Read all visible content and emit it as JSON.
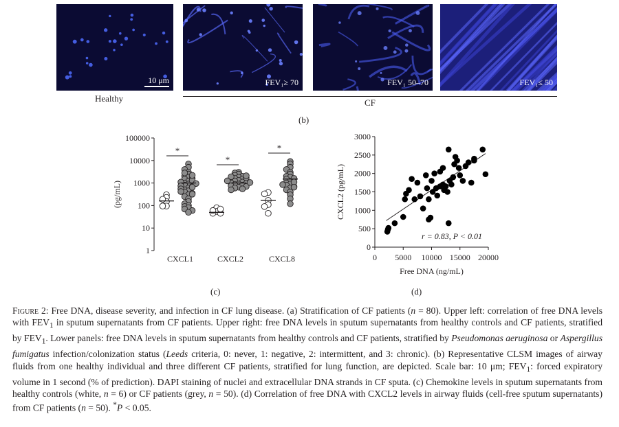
{
  "panel_b": {
    "images": [
      {
        "label": "",
        "scale_bar": "10 μm",
        "group": "Healthy"
      },
      {
        "label": "FEV₁≥ 70",
        "group": "CF"
      },
      {
        "label": "FEV₁ 50–70",
        "group": "CF"
      },
      {
        "label": "FEV₁≤ 50",
        "group": "CF"
      }
    ],
    "healthy_label": "Healthy",
    "cf_label": "CF",
    "panel_label": "(b)"
  },
  "chart_data": [
    {
      "type": "scatter",
      "title": "",
      "panel_label": "(c)",
      "ylabel": "(pg/mL)",
      "xlabel": "",
      "yscale": "log",
      "ylim": [
        1,
        100000
      ],
      "yticks": [
        "1",
        "10",
        "100",
        "1000",
        "10000",
        "100000"
      ],
      "categories": [
        "CXCL1",
        "CXCL2",
        "CXCL8"
      ],
      "significance": [
        "*",
        "*",
        "*"
      ],
      "series": [
        {
          "name": "Healthy controls",
          "color": "#ffffff",
          "values": [
            [
              300,
              230,
              150,
              95,
              95,
              190
            ],
            [
              80,
              55,
              45,
              45,
              60,
              70
            ],
            [
              380,
              330,
              170,
              110,
              90,
              45
            ]
          ],
          "medians": [
            160,
            50,
            170
          ]
        },
        {
          "name": "CF patients",
          "color": "#8c8c8c",
          "values": [
            [
              7000,
              5000,
              4000,
              3000,
              2500,
              2000,
              1800,
              1500,
              1200,
              1000,
              900,
              800,
              700,
              600,
              500,
              450,
              400,
              350,
              300,
              250,
              200,
              150,
              120,
              100,
              90,
              80,
              70,
              60,
              50,
              1600,
              1300,
              1100,
              950,
              750,
              650,
              550,
              420,
              320,
              2200,
              2800
            ],
            [
              3000,
              2800,
              2500,
              2200,
              2000,
              1800,
              1600,
              1500,
              1400,
              1300,
              1200,
              1100,
              1000,
              950,
              900,
              850,
              800,
              750,
              700,
              650,
              600,
              550,
              500,
              1700,
              1900,
              2100,
              1250,
              1050
            ],
            [
              9000,
              7000,
              5000,
              4000,
              3000,
              2500,
              2000,
              1800,
              1500,
              1200,
              1000,
              900,
              800,
              700,
              600,
              500,
              400,
              300,
              200,
              120,
              1600,
              1100,
              850,
              650
            ]
          ],
          "medians": [
            1000,
            1000,
            1500
          ]
        }
      ]
    },
    {
      "type": "scatter",
      "title": "",
      "panel_label": "(d)",
      "xlabel": "Free DNA (ng/mL)",
      "ylabel": "CXCL2 (pg/mL)",
      "xlim": [
        0,
        20000
      ],
      "ylim": [
        0,
        3000
      ],
      "xticks": [
        "0",
        "5000",
        "10000",
        "15000",
        "20000"
      ],
      "yticks": [
        "0",
        "500",
        "1000",
        "1500",
        "2000",
        "2500",
        "3000"
      ],
      "annotation": "r = 0.83, P < 0.01",
      "trendline": {
        "x": [
          2000,
          19500
        ],
        "y": [
          720,
          2540
        ]
      },
      "points": [
        [
          2200,
          420
        ],
        [
          2300,
          480
        ],
        [
          2400,
          520
        ],
        [
          3500,
          650
        ],
        [
          5000,
          820
        ],
        [
          5300,
          1300
        ],
        [
          5500,
          1450
        ],
        [
          6000,
          1550
        ],
        [
          6500,
          1850
        ],
        [
          7000,
          1300
        ],
        [
          7500,
          1750
        ],
        [
          8000,
          1380
        ],
        [
          8500,
          1050
        ],
        [
          9000,
          1950
        ],
        [
          9200,
          1600
        ],
        [
          9500,
          1300
        ],
        [
          9500,
          750
        ],
        [
          9800,
          800
        ],
        [
          10000,
          1800
        ],
        [
          10200,
          1500
        ],
        [
          10500,
          2000
        ],
        [
          10800,
          1600
        ],
        [
          11000,
          1400
        ],
        [
          11500,
          1650
        ],
        [
          11500,
          2050
        ],
        [
          12000,
          1700
        ],
        [
          12000,
          2150
        ],
        [
          12200,
          1550
        ],
        [
          12500,
          1650
        ],
        [
          12800,
          1500
        ],
        [
          13000,
          2650
        ],
        [
          13000,
          650
        ],
        [
          13200,
          1800
        ],
        [
          13500,
          1700
        ],
        [
          13800,
          1900
        ],
        [
          14000,
          2250
        ],
        [
          14200,
          2450
        ],
        [
          14500,
          2350
        ],
        [
          14800,
          2150
        ],
        [
          15000,
          1950
        ],
        [
          15500,
          1800
        ],
        [
          16000,
          2200
        ],
        [
          16500,
          2300
        ],
        [
          17000,
          1750
        ],
        [
          17500,
          2350
        ],
        [
          17500,
          2400
        ],
        [
          19000,
          2650
        ],
        [
          19500,
          1980
        ]
      ]
    }
  ],
  "caption": {
    "figure_label": "Figure 2:",
    "text_1": " Free DNA, disease severity, and infection in CF lung disease. (a) Stratification of CF patients (",
    "n_var_1": "n",
    "text_2": " = 80). Upper left: correlation of free DNA levels with FEV",
    "sub_1": "1",
    "text_3": " in sputum supernatants from CF patients. Upper right: free DNA levels in sputum supernatants from healthy controls and CF patients, stratified by FEV",
    "sub_2": "1",
    "text_4": ". Lower panels: free DNA levels in sputum supernatants from healthy controls and CF patients, stratified by ",
    "species_1": "Pseudomonas aeruginosa",
    "text_5": " or ",
    "species_2": "Aspergillus fumigatus",
    "text_6": " infection/colonization status (",
    "leeds": "Leeds",
    "text_7": " criteria, 0: never, 1: negative, 2: intermittent, and 3: chronic). (b) Representative CLSM images of airway fluids from one healthy individual and three different CF patients, stratified for lung function, are depicted. Scale bar: 10 μm; FEV",
    "sub_3": "1",
    "text_8": ": forced expiratory volume in 1 second (% of prediction). DAPI staining of nuclei and extracellular DNA strands in CF sputa. (c) Chemokine levels in sputum supernatants from healthy controls (white, ",
    "n_var_2": "n",
    "text_9": " = 6) or CF patients (grey, ",
    "n_var_3": "n",
    "text_10": " = 50). (d) Correlation of free DNA with CXCL2 levels in airway fluids (cell-free sputum supernatants) from CF patients (",
    "n_var_4": "n",
    "text_11": " = 50). ",
    "star": "*",
    "p_var": "P",
    "text_12": " < 0.05."
  }
}
